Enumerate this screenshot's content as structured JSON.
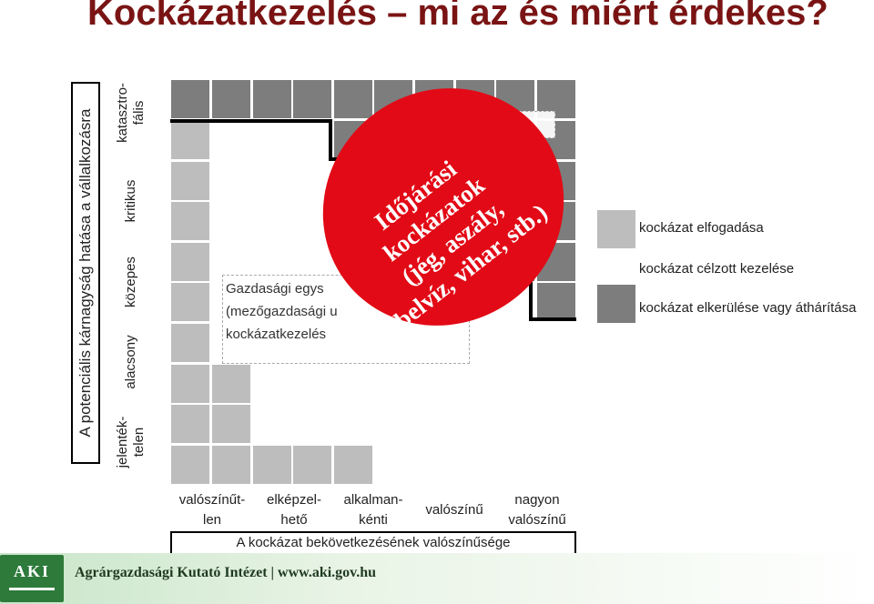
{
  "title": "Kockázatkezelés – mi az és miért érdekes?",
  "y_axis": {
    "title": "A potenciális kárnagyság hatása a vállalkozásra",
    "levels": [
      "jelenték-\ntelen",
      "alacsony",
      "közepes",
      "kritikus",
      "katasztro-\nfális"
    ]
  },
  "x_axis": {
    "title": "A kockázat bekövetkezésének valószínűsége",
    "levels": [
      "valószínűt-\nlen",
      "elképzel-\nhető",
      "alkalman-\nkénti",
      "valószínű",
      "nagyon\nvalószínű"
    ]
  },
  "matrix": {
    "rows": [
      [
        "dark",
        "dark",
        "dark",
        "dark",
        "dark",
        "dark",
        "dark",
        "dark",
        "dark",
        "dark"
      ],
      [
        "light",
        "white",
        "white",
        "white",
        "dark",
        "dark",
        "dark",
        "dark",
        "dark",
        "dark"
      ],
      [
        "light",
        "white",
        "white",
        "white",
        "white",
        "dark",
        "dark",
        "dark",
        "dark",
        "dark"
      ],
      [
        "light",
        "white",
        "white",
        "white",
        "white",
        "white",
        "dark",
        "dark",
        "dark",
        "dark"
      ],
      [
        "light",
        "white",
        "white",
        "white",
        "white",
        "white",
        "white",
        "white",
        "dark",
        "dark"
      ],
      [
        "light",
        "white",
        "white",
        "white",
        "white",
        "white",
        "white",
        "white",
        "white",
        "dark"
      ],
      [
        "light",
        "white",
        "white",
        "white",
        "white",
        "white",
        "white",
        "white",
        "white",
        "white"
      ],
      [
        "light",
        "light",
        "white",
        "white",
        "white",
        "white",
        "white",
        "white",
        "white",
        "white"
      ],
      [
        "light",
        "light",
        "white",
        "white",
        "white",
        "white",
        "white",
        "white",
        "white",
        "white"
      ],
      [
        "light",
        "light",
        "light",
        "light",
        "light",
        "white",
        "white",
        "white",
        "white",
        "white"
      ]
    ]
  },
  "overlay_text": "Gazdasági egys\n(mezőgazdasági u\nkockázatkezelés",
  "weather_ellipse_text": "Időjárási\nkockázatok\n(jég, aszály,\nbelvíz, vihar, stb.)",
  "legend": [
    {
      "label": "kockázat elfogadása",
      "color": "#bdbdbd"
    },
    {
      "label": "kockázat célzott kezelése",
      "color": "#ffffff"
    },
    {
      "label": "kockázat elkerülése vagy áthárítása",
      "color": "#7d7d7d"
    }
  ],
  "footer": {
    "logo": "AKI",
    "text": "Agrárgazdasági Kutató Intézet | www.aki.gov.hu"
  },
  "colors": {
    "light": "#bdbdbd",
    "white": "#ffffff",
    "dark": "#7d7d7d",
    "ellipse": "#e20a16",
    "title": "#7a1414"
  }
}
